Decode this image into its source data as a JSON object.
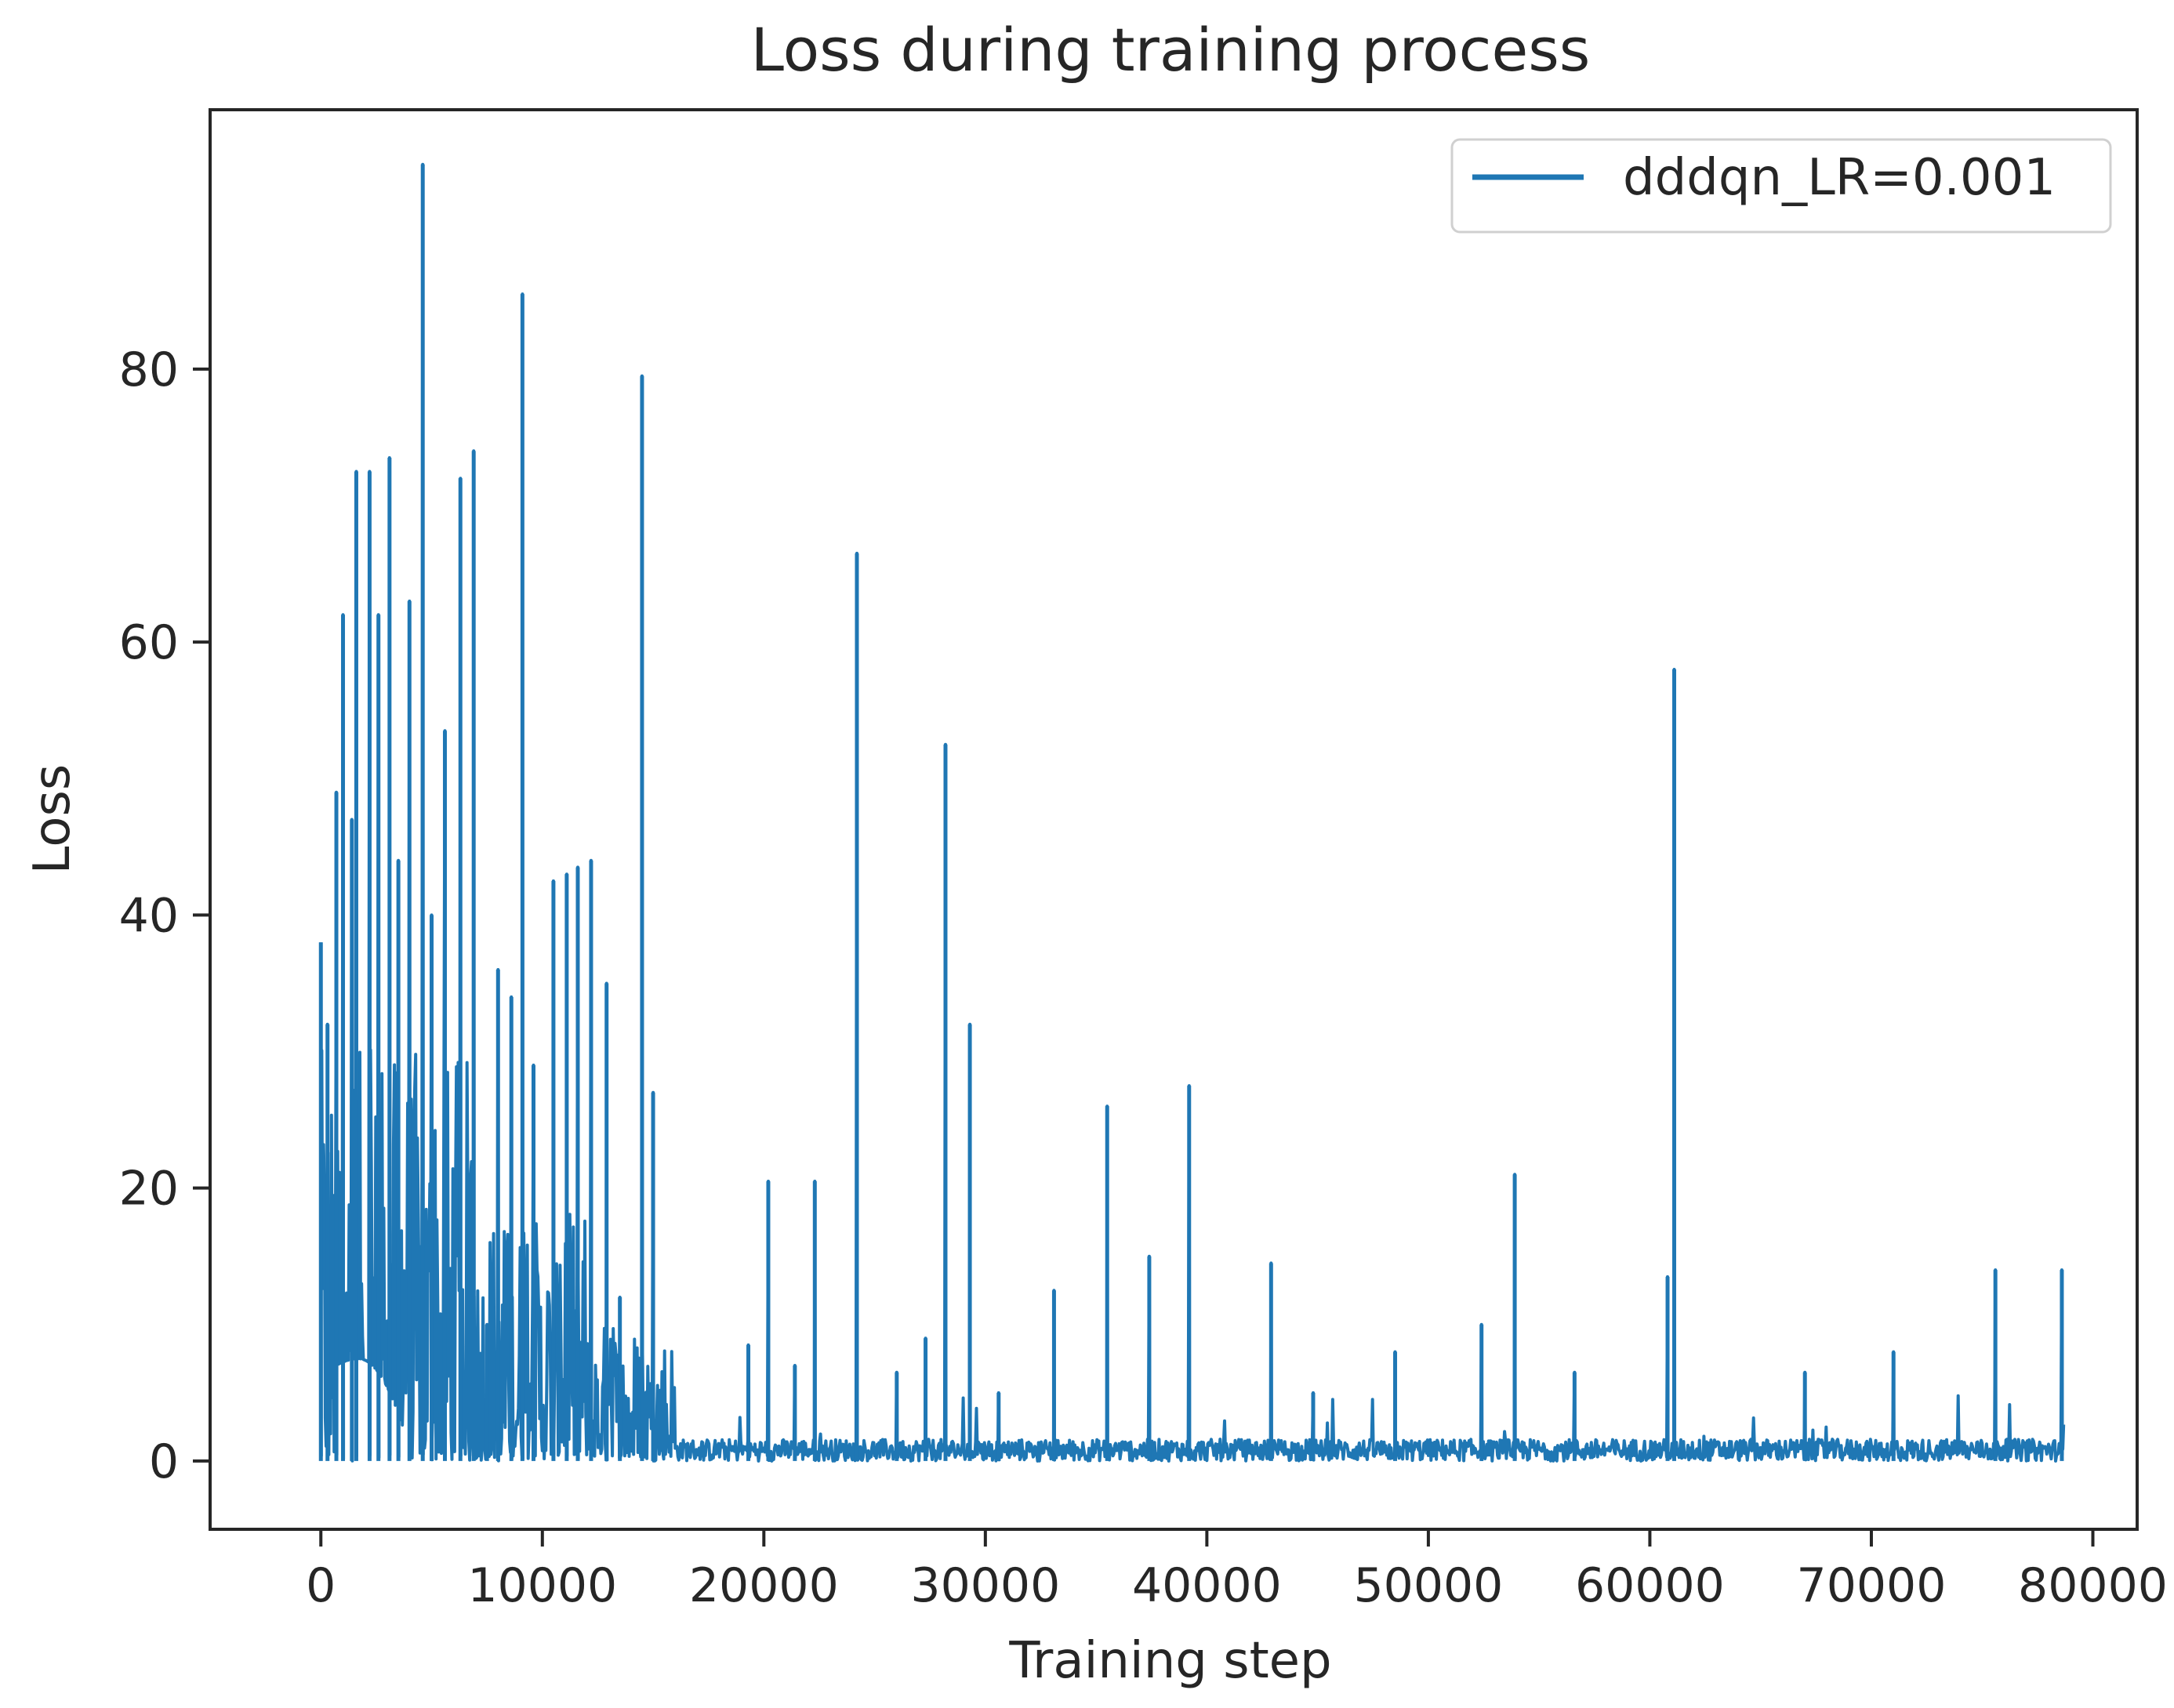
{
  "chart_data": {
    "type": "line",
    "title": "Loss during training process",
    "xlabel": "Training step",
    "ylabel": "Loss",
    "xlim": [
      -5000,
      82000
    ],
    "ylim": [
      -5,
      99
    ],
    "xticks": [
      0,
      10000,
      20000,
      30000,
      40000,
      50000,
      60000,
      70000,
      80000
    ],
    "yticks": [
      0,
      20,
      40,
      60,
      80
    ],
    "grid": false,
    "legend": {
      "position": "top-right",
      "entries": [
        "dddqn_LR=0.001"
      ]
    },
    "series": [
      {
        "name": "dddqn_LR=0.001",
        "color": "#1f77b4",
        "x_start": 0,
        "x_end": 78700,
        "noise_floor": 0.6,
        "peaks": [
          {
            "x": 0,
            "y": 38
          },
          {
            "x": 300,
            "y": 32
          },
          {
            "x": 700,
            "y": 49
          },
          {
            "x": 1000,
            "y": 62
          },
          {
            "x": 1400,
            "y": 47
          },
          {
            "x": 1600,
            "y": 72.5
          },
          {
            "x": 2200,
            "y": 72.5
          },
          {
            "x": 2600,
            "y": 62
          },
          {
            "x": 3100,
            "y": 73.5
          },
          {
            "x": 3500,
            "y": 44
          },
          {
            "x": 4000,
            "y": 63
          },
          {
            "x": 4600,
            "y": 95
          },
          {
            "x": 5000,
            "y": 40
          },
          {
            "x": 5600,
            "y": 53.5
          },
          {
            "x": 6300,
            "y": 72
          },
          {
            "x": 6900,
            "y": 74
          },
          {
            "x": 7500,
            "y": 10
          },
          {
            "x": 8000,
            "y": 36
          },
          {
            "x": 8600,
            "y": 34
          },
          {
            "x": 9100,
            "y": 85.5
          },
          {
            "x": 9600,
            "y": 29
          },
          {
            "x": 10500,
            "y": 42.5
          },
          {
            "x": 11100,
            "y": 43
          },
          {
            "x": 11600,
            "y": 43.5
          },
          {
            "x": 12200,
            "y": 44
          },
          {
            "x": 12900,
            "y": 35
          },
          {
            "x": 13500,
            "y": 12
          },
          {
            "x": 14500,
            "y": 79.5
          },
          {
            "x": 15000,
            "y": 27
          },
          {
            "x": 19300,
            "y": 8.5
          },
          {
            "x": 20200,
            "y": 20.5
          },
          {
            "x": 21400,
            "y": 7
          },
          {
            "x": 22300,
            "y": 20.5
          },
          {
            "x": 24200,
            "y": 66.5
          },
          {
            "x": 26000,
            "y": 6.5
          },
          {
            "x": 27300,
            "y": 9
          },
          {
            "x": 28200,
            "y": 52.5
          },
          {
            "x": 29300,
            "y": 32
          },
          {
            "x": 30600,
            "y": 5
          },
          {
            "x": 33100,
            "y": 12.5
          },
          {
            "x": 35500,
            "y": 26
          },
          {
            "x": 37400,
            "y": 15
          },
          {
            "x": 39200,
            "y": 27.5
          },
          {
            "x": 42900,
            "y": 14.5
          },
          {
            "x": 44800,
            "y": 5
          },
          {
            "x": 48500,
            "y": 8
          },
          {
            "x": 52400,
            "y": 10
          },
          {
            "x": 53900,
            "y": 21
          },
          {
            "x": 56600,
            "y": 6.5
          },
          {
            "x": 60800,
            "y": 13.5
          },
          {
            "x": 61100,
            "y": 58
          },
          {
            "x": 67000,
            "y": 6.5
          },
          {
            "x": 71000,
            "y": 8
          },
          {
            "x": 75600,
            "y": 14
          },
          {
            "x": 78600,
            "y": 14
          }
        ]
      }
    ]
  }
}
